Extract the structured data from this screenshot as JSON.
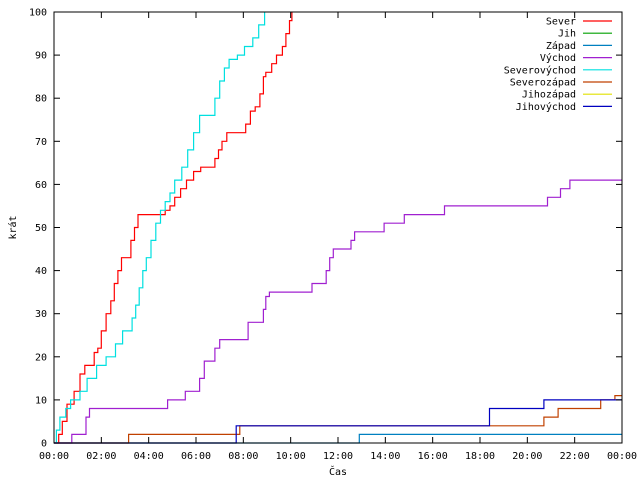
{
  "chart_data": {
    "type": "line",
    "xlabel": "Čas",
    "ylabel": "krát",
    "xlim": [
      0,
      24
    ],
    "ylim": [
      0,
      100
    ],
    "x_ticks": [
      {
        "v": 0,
        "label": "00:00"
      },
      {
        "v": 2,
        "label": "02:00"
      },
      {
        "v": 4,
        "label": "04:00"
      },
      {
        "v": 6,
        "label": "06:00"
      },
      {
        "v": 8,
        "label": "08:00"
      },
      {
        "v": 10,
        "label": "10:00"
      },
      {
        "v": 12,
        "label": "12:00"
      },
      {
        "v": 14,
        "label": "14:00"
      },
      {
        "v": 16,
        "label": "16:00"
      },
      {
        "v": 18,
        "label": "18:00"
      },
      {
        "v": 20,
        "label": "20:00"
      },
      {
        "v": 22,
        "label": "22:00"
      },
      {
        "v": 24,
        "label": "00:00"
      }
    ],
    "y_ticks": [
      {
        "v": 0,
        "label": "0"
      },
      {
        "v": 10,
        "label": "10"
      },
      {
        "v": 20,
        "label": "20"
      },
      {
        "v": 30,
        "label": "30"
      },
      {
        "v": 40,
        "label": "40"
      },
      {
        "v": 50,
        "label": "50"
      },
      {
        "v": 60,
        "label": "60"
      },
      {
        "v": 70,
        "label": "70"
      },
      {
        "v": 80,
        "label": "80"
      },
      {
        "v": 90,
        "label": "90"
      },
      {
        "v": 100,
        "label": "100"
      }
    ],
    "grid": false,
    "legend_position": "top-right",
    "series": [
      {
        "name": "Sever",
        "color": "#ff0000",
        "points": [
          [
            0.0,
            0
          ],
          [
            0.2,
            2
          ],
          [
            0.35,
            5
          ],
          [
            0.55,
            9
          ],
          [
            0.85,
            12
          ],
          [
            1.1,
            16
          ],
          [
            1.3,
            18
          ],
          [
            1.6,
            18
          ],
          [
            1.7,
            21
          ],
          [
            1.85,
            22
          ],
          [
            2.0,
            26
          ],
          [
            2.2,
            30
          ],
          [
            2.4,
            33
          ],
          [
            2.55,
            37
          ],
          [
            2.7,
            40
          ],
          [
            2.85,
            43
          ],
          [
            3.1,
            43
          ],
          [
            3.25,
            47
          ],
          [
            3.4,
            50
          ],
          [
            3.55,
            53
          ],
          [
            4.5,
            53
          ],
          [
            4.7,
            54
          ],
          [
            4.9,
            55
          ],
          [
            5.1,
            57
          ],
          [
            5.35,
            59
          ],
          [
            5.6,
            61
          ],
          [
            5.9,
            63
          ],
          [
            6.2,
            64
          ],
          [
            6.6,
            64
          ],
          [
            6.8,
            66
          ],
          [
            6.95,
            68
          ],
          [
            7.1,
            70
          ],
          [
            7.3,
            72
          ],
          [
            7.9,
            72
          ],
          [
            8.1,
            74
          ],
          [
            8.3,
            77
          ],
          [
            8.5,
            78
          ],
          [
            8.7,
            81
          ],
          [
            8.85,
            85
          ],
          [
            8.95,
            86
          ],
          [
            9.2,
            88
          ],
          [
            9.4,
            90
          ],
          [
            9.65,
            92
          ],
          [
            9.8,
            95
          ],
          [
            9.95,
            98
          ],
          [
            10.05,
            100
          ]
        ]
      },
      {
        "name": "Jih",
        "color": "#00a000",
        "points": []
      },
      {
        "name": "Západ",
        "color": "#0080c0",
        "points": [
          [
            0,
            0
          ],
          [
            12.8,
            0
          ],
          [
            12.9,
            2
          ],
          [
            24.0,
            2
          ]
        ]
      },
      {
        "name": "Východ",
        "color": "#a020d0",
        "points": [
          [
            0,
            0
          ],
          [
            0.6,
            0
          ],
          [
            0.75,
            2
          ],
          [
            1.15,
            2
          ],
          [
            1.35,
            6
          ],
          [
            1.5,
            8
          ],
          [
            4.7,
            8
          ],
          [
            4.8,
            10
          ],
          [
            5.4,
            10
          ],
          [
            5.55,
            12
          ],
          [
            6.0,
            12
          ],
          [
            6.15,
            15
          ],
          [
            6.35,
            19
          ],
          [
            6.7,
            19
          ],
          [
            6.8,
            22
          ],
          [
            7.0,
            24
          ],
          [
            8.0,
            24
          ],
          [
            8.2,
            28
          ],
          [
            8.7,
            28
          ],
          [
            8.85,
            31
          ],
          [
            8.95,
            34
          ],
          [
            9.1,
            35
          ],
          [
            10.7,
            35
          ],
          [
            10.9,
            37
          ],
          [
            11.3,
            37
          ],
          [
            11.5,
            40
          ],
          [
            11.65,
            43
          ],
          [
            11.8,
            45
          ],
          [
            12.4,
            45
          ],
          [
            12.55,
            47
          ],
          [
            12.7,
            49
          ],
          [
            13.8,
            49
          ],
          [
            13.95,
            51
          ],
          [
            14.6,
            51
          ],
          [
            14.8,
            53
          ],
          [
            16.2,
            53
          ],
          [
            16.5,
            55
          ],
          [
            20.7,
            55
          ],
          [
            20.85,
            57
          ],
          [
            21.2,
            57
          ],
          [
            21.4,
            59
          ],
          [
            21.8,
            61
          ],
          [
            24.0,
            61
          ]
        ]
      },
      {
        "name": "Severovýchod",
        "color": "#00e0e0",
        "points": [
          [
            0.0,
            0
          ],
          [
            0.1,
            3
          ],
          [
            0.25,
            6
          ],
          [
            0.5,
            8
          ],
          [
            0.7,
            10
          ],
          [
            1.1,
            12
          ],
          [
            1.4,
            15
          ],
          [
            1.8,
            18
          ],
          [
            2.2,
            20
          ],
          [
            2.6,
            23
          ],
          [
            2.9,
            26
          ],
          [
            3.3,
            29
          ],
          [
            3.45,
            32
          ],
          [
            3.6,
            36
          ],
          [
            3.75,
            40
          ],
          [
            3.9,
            43
          ],
          [
            4.1,
            47
          ],
          [
            4.3,
            51
          ],
          [
            4.5,
            54
          ],
          [
            4.7,
            56
          ],
          [
            4.9,
            58
          ],
          [
            5.1,
            61
          ],
          [
            5.4,
            64
          ],
          [
            5.65,
            68
          ],
          [
            5.9,
            72
          ],
          [
            6.15,
            76
          ],
          [
            6.6,
            76
          ],
          [
            6.8,
            80
          ],
          [
            7.0,
            84
          ],
          [
            7.2,
            87
          ],
          [
            7.4,
            89
          ],
          [
            7.75,
            90
          ],
          [
            8.05,
            92
          ],
          [
            8.4,
            94
          ],
          [
            8.65,
            97
          ],
          [
            8.9,
            100
          ]
        ]
      },
      {
        "name": "Severozápad",
        "color": "#c04000",
        "points": [
          [
            0,
            0
          ],
          [
            3.05,
            0
          ],
          [
            3.15,
            2
          ],
          [
            7.7,
            2
          ],
          [
            7.85,
            4
          ],
          [
            20.5,
            4
          ],
          [
            20.7,
            6
          ],
          [
            21.1,
            6
          ],
          [
            21.3,
            8
          ],
          [
            22.9,
            8
          ],
          [
            23.1,
            10
          ],
          [
            23.5,
            10
          ],
          [
            23.7,
            11
          ],
          [
            24.0,
            11
          ]
        ]
      },
      {
        "name": "Jihozápad",
        "color": "#e0e000",
        "points": []
      },
      {
        "name": "Jihovýchod",
        "color": "#0000c0",
        "points": [
          [
            0,
            0
          ],
          [
            7.6,
            0
          ],
          [
            7.7,
            4
          ],
          [
            18.2,
            4
          ],
          [
            18.4,
            8
          ],
          [
            20.5,
            8
          ],
          [
            20.7,
            10
          ],
          [
            24.0,
            10
          ]
        ]
      }
    ]
  }
}
